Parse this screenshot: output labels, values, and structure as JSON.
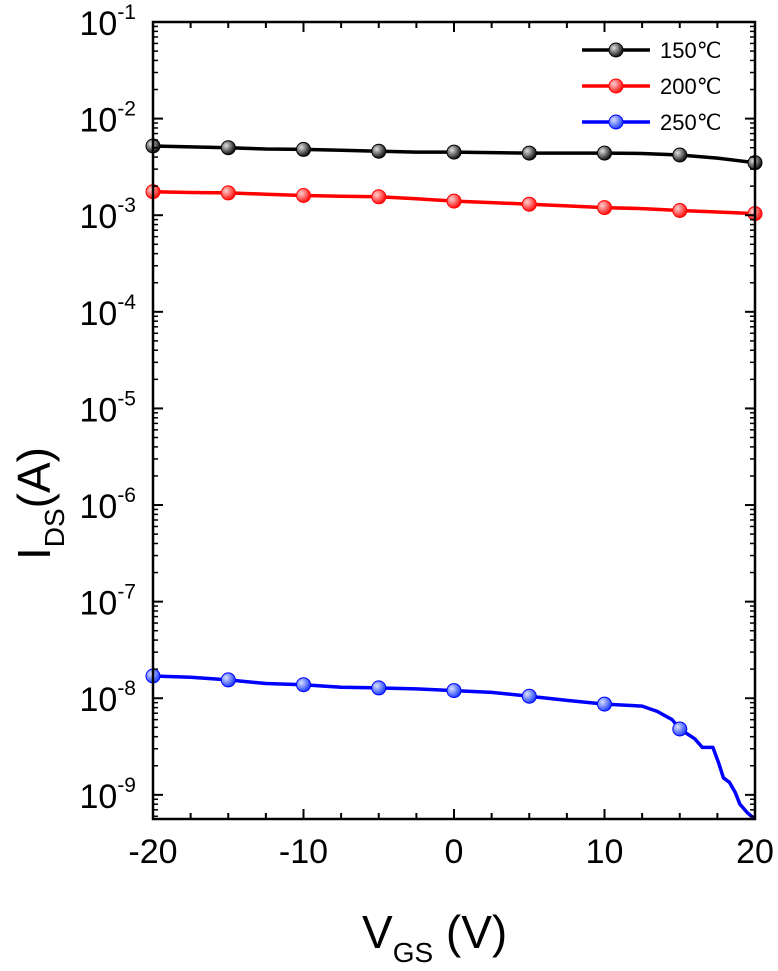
{
  "chart_data": {
    "type": "line",
    "xlabel": {
      "main": "V",
      "sub": "GS",
      "rest": " (V)"
    },
    "ylabel": {
      "main": "I",
      "sub": "DS",
      "rest": "(A)"
    },
    "xlim": [
      -20,
      20
    ],
    "ylim_log10": [
      -9.25,
      -1
    ],
    "y_scale": "log",
    "x_ticks": [
      -20,
      -10,
      0,
      10,
      20
    ],
    "y_tick_exponents": [
      -9,
      -8,
      -7,
      -6,
      -5,
      -4,
      -3,
      -2,
      -1
    ],
    "y_tick_base": "10",
    "legend_placement": "top-right",
    "series": [
      {
        "name": "150℃",
        "color": "#000000",
        "marker_fill": "#1a1a1a",
        "line": [
          [
            -20,
            0.0052
          ],
          [
            -17.5,
            0.0051
          ],
          [
            -15,
            0.005
          ],
          [
            -12.5,
            0.00485
          ],
          [
            -10,
            0.0048
          ],
          [
            -7.5,
            0.0047
          ],
          [
            -5,
            0.0046
          ],
          [
            -2.5,
            0.0045
          ],
          [
            0,
            0.0045
          ],
          [
            2.5,
            0.00445
          ],
          [
            5,
            0.0044
          ],
          [
            7.5,
            0.0044
          ],
          [
            10,
            0.0044
          ],
          [
            12.5,
            0.00435
          ],
          [
            15,
            0.0042
          ],
          [
            17.5,
            0.0039
          ],
          [
            20,
            0.0035
          ]
        ],
        "markers": [
          [
            -20,
            0.0052
          ],
          [
            -15,
            0.005
          ],
          [
            -10,
            0.0048
          ],
          [
            -5,
            0.0046
          ],
          [
            0,
            0.0045
          ],
          [
            5,
            0.0044
          ],
          [
            10,
            0.0044
          ],
          [
            15,
            0.0042
          ],
          [
            20,
            0.0035
          ]
        ]
      },
      {
        "name": "200℃",
        "color": "#ff0000",
        "marker_fill": "#ff2a2a",
        "line": [
          [
            -20,
            0.00175
          ],
          [
            -17.5,
            0.00172
          ],
          [
            -15,
            0.0017
          ],
          [
            -12.5,
            0.00165
          ],
          [
            -10,
            0.0016
          ],
          [
            -7.5,
            0.00157
          ],
          [
            -5,
            0.00155
          ],
          [
            -2.5,
            0.00148
          ],
          [
            0,
            0.0014
          ],
          [
            2.5,
            0.00135
          ],
          [
            5,
            0.0013
          ],
          [
            7.5,
            0.00125
          ],
          [
            10,
            0.0012
          ],
          [
            12.5,
            0.00117
          ],
          [
            15,
            0.00112
          ],
          [
            17.5,
            0.00108
          ],
          [
            20,
            0.00104
          ]
        ],
        "markers": [
          [
            -20,
            0.00175
          ],
          [
            -15,
            0.0017
          ],
          [
            -10,
            0.0016
          ],
          [
            -5,
            0.00155
          ],
          [
            0,
            0.0014
          ],
          [
            5,
            0.0013
          ],
          [
            10,
            0.0012
          ],
          [
            15,
            0.00112
          ],
          [
            20,
            0.00104
          ]
        ]
      },
      {
        "name": "250℃",
        "color": "#0000ff",
        "marker_fill": "#3a5bff",
        "line": [
          [
            -20,
            1.7e-08
          ],
          [
            -17.5,
            1.65e-08
          ],
          [
            -15,
            1.55e-08
          ],
          [
            -12.5,
            1.42e-08
          ],
          [
            -10,
            1.38e-08
          ],
          [
            -7.5,
            1.3e-08
          ],
          [
            -5,
            1.28e-08
          ],
          [
            -2.5,
            1.25e-08
          ],
          [
            0,
            1.2e-08
          ],
          [
            2.5,
            1.15e-08
          ],
          [
            5,
            1.05e-08
          ],
          [
            7.5,
            9.5e-09
          ],
          [
            10,
            8.7e-09
          ],
          [
            12.5,
            8.3e-09
          ],
          [
            13.5,
            7.3e-09
          ],
          [
            14.5,
            6e-09
          ],
          [
            15,
            4.8e-09
          ],
          [
            16,
            3.8e-09
          ],
          [
            16.5,
            3.1e-09
          ],
          [
            17.2,
            3.1e-09
          ],
          [
            17.6,
            2.1e-09
          ],
          [
            17.9,
            1.5e-09
          ],
          [
            18.3,
            1.35e-09
          ],
          [
            18.7,
            1.05e-09
          ],
          [
            19,
            8e-10
          ],
          [
            19.5,
            6.5e-10
          ],
          [
            20,
            5.6e-10
          ]
        ],
        "markers": [
          [
            -20,
            1.7e-08
          ],
          [
            -15,
            1.55e-08
          ],
          [
            -10,
            1.38e-08
          ],
          [
            -5,
            1.28e-08
          ],
          [
            0,
            1.2e-08
          ],
          [
            5,
            1.05e-08
          ],
          [
            10,
            8.7e-09
          ],
          [
            15,
            4.8e-09
          ]
        ]
      }
    ]
  }
}
